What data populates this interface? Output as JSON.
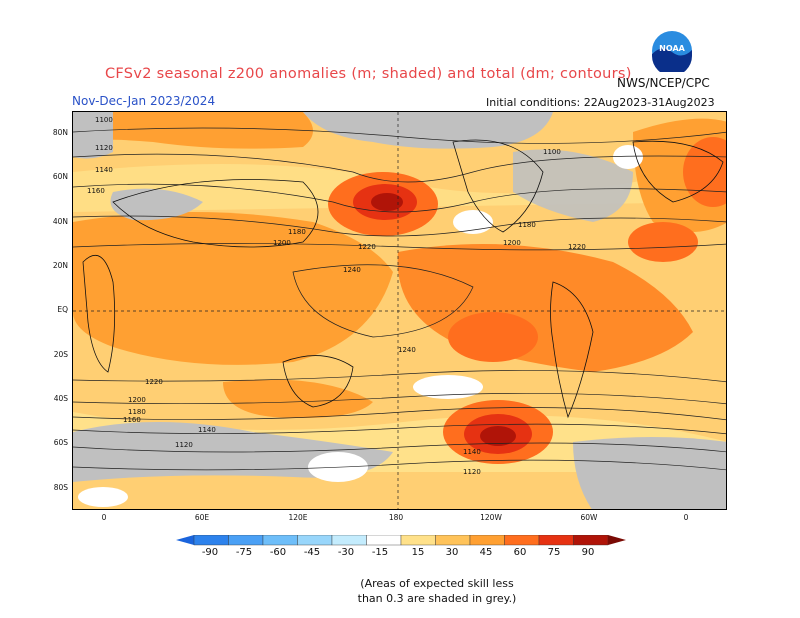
{
  "header": {
    "title": "CFSv2 seasonal z200 anomalies (m; shaded) and total (dm; contours)",
    "org": "NWS/NCEP/CPC",
    "logo_text": "NOAA",
    "period": "Nov-Dec-Jan 2023/2024",
    "initial_conditions": "Initial conditions: 22Aug2023-31Aug2023"
  },
  "map": {
    "lat_labels": [
      "80N",
      "60N",
      "40N",
      "20N",
      "EQ",
      "20S",
      "40S",
      "60S",
      "80S"
    ],
    "lon_labels": [
      "0",
      "60E",
      "120E",
      "180",
      "120W",
      "60W",
      "0"
    ],
    "contour_labels": [
      "1100",
      "1120",
      "1140",
      "1160",
      "1180",
      "1200",
      "1220",
      "1240"
    ],
    "skill_mask_color": "#c0c0c0"
  },
  "colorbar": {
    "ticks": [
      "-90",
      "-75",
      "-60",
      "-45",
      "-30",
      "-15",
      "15",
      "30",
      "45",
      "60",
      "75",
      "90"
    ],
    "colors": [
      "#1a64dc",
      "#2d82ec",
      "#4aa0f5",
      "#6ebef9",
      "#98d6fb",
      "#c4ecfd",
      "#ffffff",
      "#ffe18a",
      "#ffc35a",
      "#ffa032",
      "#ff6e1e",
      "#e63212",
      "#b01408",
      "#7a0a04"
    ]
  },
  "note": {
    "line1": "(Areas of expected skill less",
    "line2": "than 0.3 are shaded in grey.)"
  }
}
